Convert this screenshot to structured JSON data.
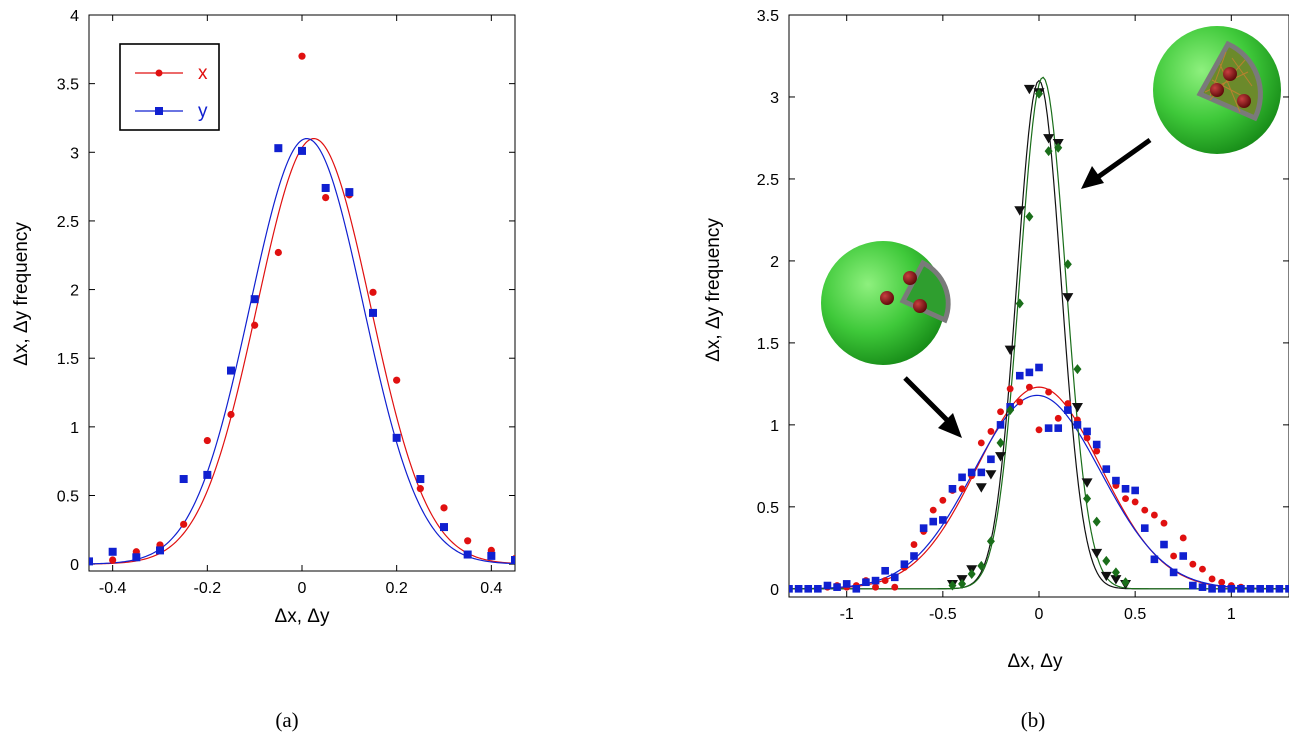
{
  "chart_data": [
    {
      "type": "scatter",
      "panel_label": "(a)",
      "xlabel": "Δx, Δy",
      "ylabel": "Δx, Δy frequency",
      "xlim": [
        -0.45,
        0.45
      ],
      "ylim": [
        -0.05,
        4.0
      ],
      "xticks": [
        -0.4,
        -0.2,
        0,
        0.2,
        0.4
      ],
      "xtick_labels": [
        "-0.4",
        "-0.2",
        "0",
        "0.2",
        "0.4"
      ],
      "yticks": [
        0,
        0.5,
        1,
        1.5,
        2,
        2.5,
        3,
        3.5,
        4
      ],
      "ytick_labels": [
        "0",
        "0.5",
        "1",
        "1.5",
        "2",
        "2.5",
        "3",
        "3.5",
        "4"
      ],
      "legend_position": "top-left",
      "series": [
        {
          "name": "x",
          "color": "#e01010",
          "marker": "circle",
          "x": [
            -0.45,
            -0.4,
            -0.35,
            -0.3,
            -0.25,
            -0.2,
            -0.15,
            -0.1,
            -0.05,
            0.0,
            0.05,
            0.1,
            0.15,
            0.2,
            0.25,
            0.3,
            0.35,
            0.4,
            0.45
          ],
          "y": [
            0.02,
            0.03,
            0.09,
            0.14,
            0.29,
            0.9,
            1.09,
            1.74,
            2.27,
            3.7,
            2.67,
            2.69,
            1.98,
            1.34,
            0.55,
            0.41,
            0.17,
            0.1,
            0.04
          ],
          "fit": {
            "amplitude": 3.1,
            "center": 0.025,
            "sigma": 0.12
          }
        },
        {
          "name": "y",
          "color": "#1020d0",
          "marker": "square",
          "x": [
            -0.45,
            -0.4,
            -0.35,
            -0.3,
            -0.25,
            -0.2,
            -0.15,
            -0.1,
            -0.05,
            0.0,
            0.05,
            0.1,
            0.15,
            0.2,
            0.25,
            0.3,
            0.35,
            0.4,
            0.45
          ],
          "y": [
            0.02,
            0.09,
            0.05,
            0.1,
            0.62,
            0.65,
            1.41,
            1.93,
            3.03,
            3.01,
            2.74,
            2.71,
            1.83,
            0.92,
            0.62,
            0.27,
            0.07,
            0.06,
            0.03
          ],
          "fit": {
            "amplitude": 3.1,
            "center": 0.01,
            "sigma": 0.12
          }
        }
      ]
    },
    {
      "type": "scatter",
      "panel_label": "(b)",
      "xlabel": "Δx, Δy",
      "ylabel": "Δx, Δy frequency",
      "xlim": [
        -1.3,
        1.3
      ],
      "ylim": [
        -0.05,
        3.5
      ],
      "xticks": [
        -1,
        -0.5,
        0,
        0.5,
        1
      ],
      "xtick_labels": [
        "-1",
        "-0.5",
        "0",
        "0.5",
        "1"
      ],
      "yticks": [
        0,
        0.5,
        1,
        1.5,
        2,
        2.5,
        3,
        3.5
      ],
      "ytick_labels": [
        "0",
        "0.5",
        "1",
        "1.5",
        "2",
        "2.5",
        "3",
        "3.5"
      ],
      "insets": [
        "green sphere cutaway with three nuclei (wide distribution)",
        "green sphere cutaway with fibrous network (narrow distribution)"
      ],
      "series": [
        {
          "color": "#e01010",
          "marker": "circle",
          "x": [
            -1.3,
            -1.25,
            -1.2,
            -1.15,
            -1.1,
            -1.05,
            -1.0,
            -0.95,
            -0.9,
            -0.85,
            -0.8,
            -0.75,
            -0.7,
            -0.65,
            -0.6,
            -0.55,
            -0.5,
            -0.45,
            -0.4,
            -0.35,
            -0.3,
            -0.25,
            -0.2,
            -0.15,
            -0.1,
            -0.05,
            0.0,
            0.05,
            0.1,
            0.15,
            0.2,
            0.25,
            0.3,
            0.35,
            0.4,
            0.45,
            0.5,
            0.55,
            0.6,
            0.65,
            0.7,
            0.75,
            0.8,
            0.85,
            0.9,
            0.95,
            1.0,
            1.05,
            1.1,
            1.15,
            1.2,
            1.25,
            1.3
          ],
          "y": [
            0.0,
            0.0,
            0.0,
            0.0,
            0.01,
            0.02,
            0.01,
            0.02,
            0.05,
            0.01,
            0.05,
            0.01,
            0.13,
            0.27,
            0.35,
            0.48,
            0.54,
            0.6,
            0.61,
            0.69,
            0.89,
            0.96,
            1.08,
            1.22,
            1.14,
            1.23,
            0.97,
            1.2,
            1.04,
            1.13,
            1.03,
            0.92,
            0.84,
            0.73,
            0.63,
            0.55,
            0.53,
            0.48,
            0.45,
            0.4,
            0.2,
            0.31,
            0.15,
            0.12,
            0.06,
            0.04,
            0.02,
            0.01,
            0.0,
            0.0,
            0.0,
            0.0,
            0.0
          ],
          "fit": {
            "amplitude": 1.23,
            "center": 0.0,
            "sigma": 0.32
          }
        },
        {
          "color": "#1020d0",
          "marker": "square",
          "x": [
            -1.3,
            -1.25,
            -1.2,
            -1.15,
            -1.1,
            -1.05,
            -1.0,
            -0.95,
            -0.9,
            -0.85,
            -0.8,
            -0.75,
            -0.7,
            -0.65,
            -0.6,
            -0.55,
            -0.5,
            -0.45,
            -0.4,
            -0.35,
            -0.3,
            -0.25,
            -0.2,
            -0.15,
            -0.1,
            -0.05,
            0.0,
            0.05,
            0.1,
            0.15,
            0.2,
            0.25,
            0.3,
            0.35,
            0.4,
            0.45,
            0.5,
            0.55,
            0.6,
            0.65,
            0.7,
            0.75,
            0.8,
            0.85,
            0.9,
            0.95,
            1.0,
            1.05,
            1.1,
            1.15,
            1.2,
            1.25,
            1.3
          ],
          "y": [
            0.0,
            0.0,
            0.0,
            0.0,
            0.02,
            0.01,
            0.03,
            0.0,
            0.04,
            0.05,
            0.11,
            0.07,
            0.15,
            0.2,
            0.37,
            0.41,
            0.42,
            0.61,
            0.68,
            0.71,
            0.71,
            0.79,
            1.0,
            1.11,
            1.3,
            1.32,
            1.35,
            0.98,
            0.98,
            1.09,
            1.0,
            0.96,
            0.88,
            0.73,
            0.66,
            0.61,
            0.6,
            0.37,
            0.18,
            0.27,
            0.1,
            0.2,
            0.02,
            0.01,
            0.0,
            0.0,
            0.0,
            0.0,
            0.0,
            0.0,
            0.0,
            0.0,
            0.0
          ],
          "fit": {
            "amplitude": 1.18,
            "center": -0.01,
            "sigma": 0.33
          }
        },
        {
          "color": "#111111",
          "marker": "triangle-down",
          "x": [
            -0.45,
            -0.4,
            -0.35,
            -0.3,
            -0.25,
            -0.2,
            -0.15,
            -0.1,
            -0.05,
            0.0,
            0.05,
            0.1,
            0.15,
            0.2,
            0.25,
            0.3,
            0.35,
            0.4,
            0.45
          ],
          "y": [
            0.03,
            0.06,
            0.12,
            0.62,
            0.7,
            0.81,
            1.46,
            2.31,
            3.05,
            3.03,
            2.75,
            2.72,
            1.78,
            1.11,
            0.65,
            0.22,
            0.08,
            0.06,
            0.03
          ],
          "fit": {
            "amplitude": 3.1,
            "center": 0.0,
            "sigma": 0.115
          }
        },
        {
          "color": "#1a6e1a",
          "marker": "diamond",
          "x": [
            -0.45,
            -0.4,
            -0.35,
            -0.3,
            -0.25,
            -0.2,
            -0.15,
            -0.1,
            -0.05,
            0.0,
            0.05,
            0.1,
            0.15,
            0.2,
            0.25,
            0.3,
            0.35,
            0.4,
            0.45
          ],
          "y": [
            0.02,
            0.03,
            0.09,
            0.14,
            0.29,
            0.89,
            1.09,
            1.74,
            2.27,
            3.02,
            2.67,
            2.69,
            1.98,
            1.34,
            0.55,
            0.41,
            0.17,
            0.1,
            0.04
          ],
          "fit": {
            "amplitude": 3.12,
            "center": 0.02,
            "sigma": 0.12
          }
        }
      ]
    }
  ]
}
